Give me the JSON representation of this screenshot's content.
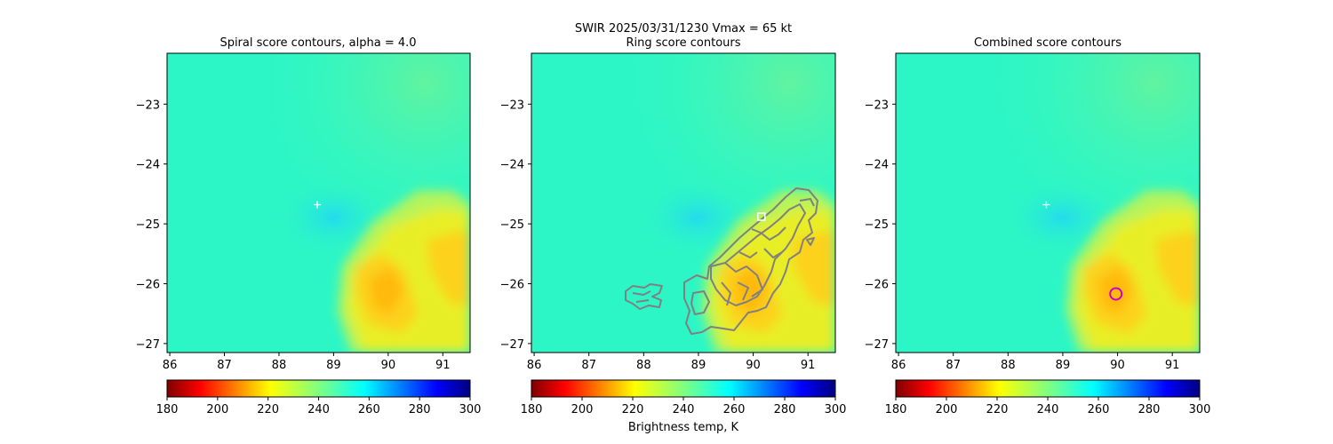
{
  "figure": {
    "suptitle_line1": "SWIR  2025/03/31/1230    Vmax = 65 kt",
    "colorbar_label": "Brightness temp, K"
  },
  "chart_data": [
    {
      "type": "heatmap",
      "title": "Spiral score contours, alpha =  4.0",
      "xlim": [
        85.95,
        91.5
      ],
      "ylim": [
        -27.15,
        -22.15
      ],
      "xticks": [
        86,
        87,
        88,
        89,
        90,
        91
      ],
      "yticks": [
        -23,
        -24,
        -25,
        -26,
        -27
      ],
      "colorscale": "jet_r",
      "cbar_range": [
        180,
        300
      ],
      "cbar_ticks": [
        180,
        200,
        220,
        240,
        260,
        280,
        300
      ],
      "markers": [
        {
          "kind": "plus",
          "color": "#ffffff",
          "x": 88.7,
          "y": -24.68
        }
      ]
    },
    {
      "type": "heatmap",
      "title": "Ring score contours",
      "xlim": [
        85.95,
        91.5
      ],
      "ylim": [
        -27.15,
        -22.15
      ],
      "xticks": [
        86,
        87,
        88,
        89,
        90,
        91
      ],
      "yticks": [
        -23,
        -24,
        -25,
        -26,
        -27
      ],
      "colorscale": "jet_r",
      "cbar_range": [
        180,
        300
      ],
      "cbar_ticks": [
        180,
        200,
        220,
        240,
        260,
        280,
        300
      ],
      "contour_color": "#808080",
      "markers": [
        {
          "kind": "square",
          "color": "#ffffff",
          "x": 90.15,
          "y": -24.88
        }
      ]
    },
    {
      "type": "heatmap",
      "title": "Combined score contours",
      "xlim": [
        85.95,
        91.5
      ],
      "ylim": [
        -27.15,
        -22.15
      ],
      "xticks": [
        86,
        87,
        88,
        89,
        90,
        91
      ],
      "yticks": [
        -23,
        -24,
        -25,
        -26,
        -27
      ],
      "colorscale": "jet_r",
      "cbar_range": [
        180,
        300
      ],
      "cbar_ticks": [
        180,
        200,
        220,
        240,
        260,
        280,
        300
      ],
      "markers": [
        {
          "kind": "plus",
          "color": "#ffffff",
          "x": 88.7,
          "y": -24.68
        },
        {
          "kind": "circle",
          "color": "#cc00cc",
          "x": 89.97,
          "y": -26.17
        }
      ]
    }
  ],
  "colors": {
    "field_background": "#2cf6c6",
    "cold_core": "#26e6e8",
    "warm_cloud_outer": "#b6f45a",
    "warm_cloud_mid": "#e8ee26",
    "warm_cloud_inner": "#fcd21c",
    "warm_cloud_core": "#ffba0c",
    "contour": "#808080"
  }
}
